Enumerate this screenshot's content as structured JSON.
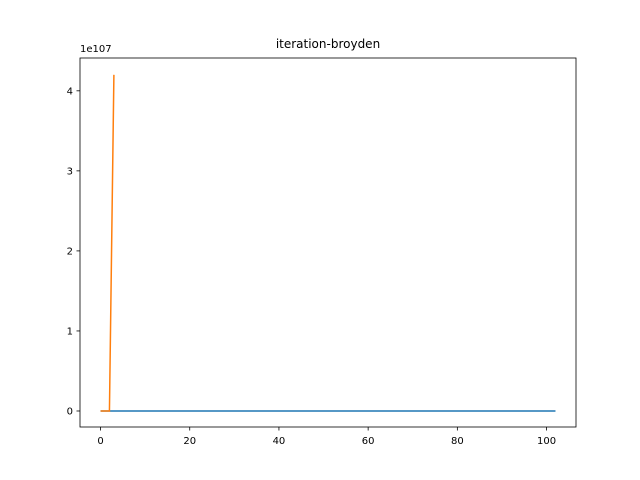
{
  "chart_data": {
    "type": "line",
    "title": "iteration-broyden",
    "xlabel": "",
    "ylabel": "",
    "y_offset_label": "1e107",
    "xlim": [
      -4.6,
      106.6
    ],
    "ylim": [
      -0.2,
      4.41
    ],
    "x_ticks": [
      0,
      20,
      40,
      60,
      80,
      100
    ],
    "y_ticks": [
      0,
      1,
      2,
      3,
      4
    ],
    "grid": false,
    "series": [
      {
        "color": "#1f77b4",
        "x": [
          0,
          102
        ],
        "y": [
          0,
          0
        ]
      },
      {
        "color": "#ff7f0e",
        "x": [
          0,
          1,
          2,
          3
        ],
        "y": [
          0,
          0,
          0,
          4.2
        ]
      }
    ]
  }
}
